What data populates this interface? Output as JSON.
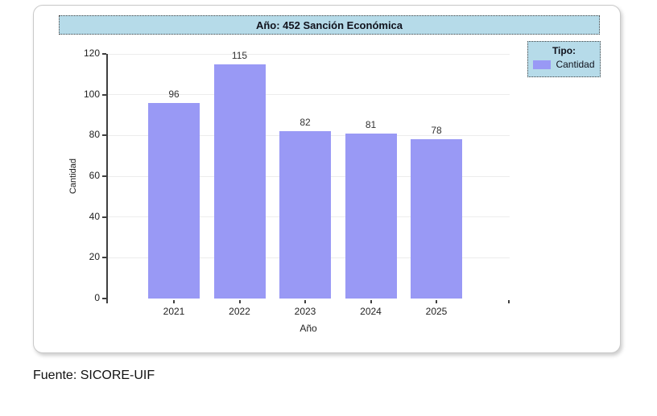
{
  "panel": {
    "title": "Año: 452 Sanción Económica"
  },
  "legend": {
    "title": "Tipo:",
    "items": [
      {
        "label": "Cantidad",
        "color": "#9999f5"
      }
    ]
  },
  "chart_data": {
    "type": "bar",
    "categories": [
      "2021",
      "2022",
      "2023",
      "2024",
      "2025"
    ],
    "values": [
      96,
      115,
      82,
      81,
      78
    ],
    "title": "Año: 452 Sanción Económica",
    "xlabel": "Año",
    "ylabel": "Cantidad",
    "ylim": [
      0,
      120
    ],
    "yticks": [
      0,
      20,
      40,
      60,
      80,
      100,
      120
    ],
    "bar_color": "#9999f5",
    "grid": true,
    "value_labels": true,
    "legend_position": "top-right"
  },
  "source": {
    "text": "Fuente: SICORE-UIF"
  },
  "colors": {
    "bar": "#9999f5",
    "header_bg": "#b6dbe9",
    "grid": "#ececec",
    "axis": "#3f3f3f",
    "panel_border": "#c9c9c9"
  }
}
